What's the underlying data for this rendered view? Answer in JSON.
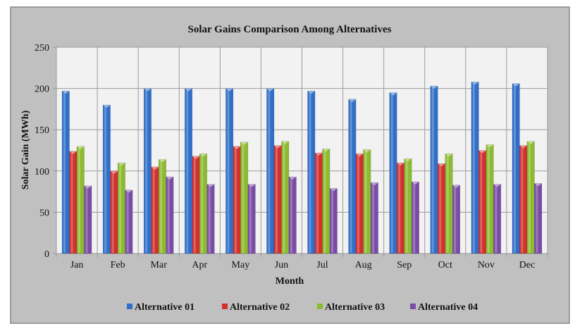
{
  "chart_data": {
    "type": "bar",
    "title": "Solar Gains Comparison Among Alternatives",
    "xlabel": "Month",
    "ylabel": "Solar Gain (MWh)",
    "ylim": [
      0,
      250
    ],
    "yticks": [
      0,
      50,
      100,
      150,
      200,
      250
    ],
    "grid": true,
    "legend_position": "bottom",
    "categories": [
      "Jan",
      "Feb",
      "Mar",
      "Apr",
      "May",
      "Jun",
      "Jul",
      "Aug",
      "Sep",
      "Oct",
      "Nov",
      "Dec"
    ],
    "series": [
      {
        "name": "Alternative 01",
        "color": "#2f6fc9",
        "values": [
          197,
          180,
          200,
          200,
          200,
          200,
          197,
          187,
          195,
          203,
          208,
          206
        ]
      },
      {
        "name": "Alternative 02",
        "color": "#d2312e",
        "values": [
          124,
          100,
          105,
          118,
          130,
          131,
          122,
          121,
          110,
          109,
          125,
          131
        ]
      },
      {
        "name": "Alternative 03",
        "color": "#8dbb2f",
        "values": [
          130,
          110,
          114,
          121,
          135,
          136,
          127,
          126,
          115,
          121,
          132,
          136
        ]
      },
      {
        "name": "Alternative 04",
        "color": "#7a4ca6",
        "values": [
          82,
          77,
          93,
          84,
          84,
          93,
          79,
          86,
          87,
          83,
          84,
          85
        ]
      }
    ]
  }
}
